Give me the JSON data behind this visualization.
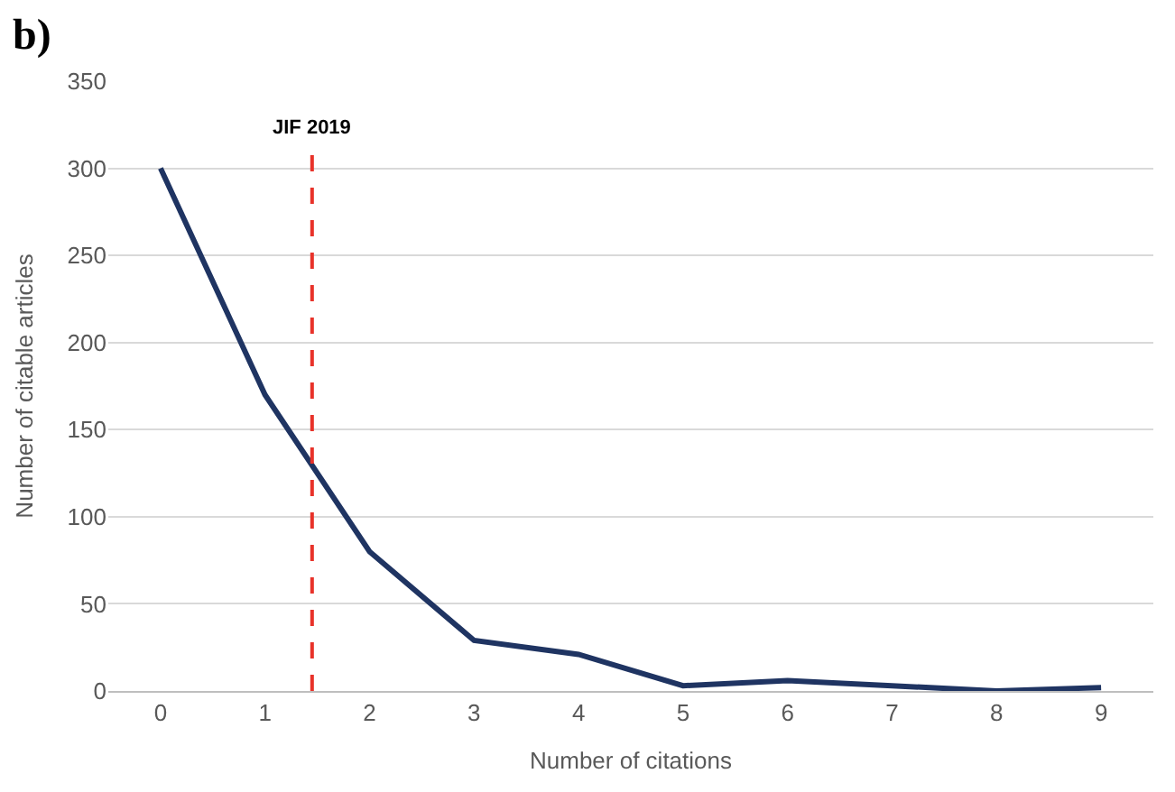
{
  "chart_data": {
    "type": "line",
    "xlabel": "Number of citations",
    "ylabel": "Number of citable articles",
    "x": [
      0,
      1,
      2,
      3,
      4,
      5,
      6,
      7,
      8,
      9
    ],
    "series": [
      {
        "color": "#1f3462",
        "values": [
          300,
          170,
          80,
          29,
          21,
          3,
          6,
          3,
          0,
          2
        ]
      }
    ],
    "xlim": [
      -0.5,
      9.5
    ],
    "xticks": [
      0,
      1,
      2,
      3,
      4,
      5,
      6,
      7,
      8,
      9
    ],
    "ylim": [
      0,
      350
    ],
    "yticks": [
      0,
      50,
      100,
      150,
      200,
      250,
      300,
      350
    ],
    "ref_lines": [
      {
        "axis": "x",
        "value": 1.45,
        "label": "JIF 2019",
        "color": "#e8322a",
        "line_style": "dashed"
      }
    ],
    "annotations": [
      "b)"
    ],
    "grid": "y",
    "marker": "none",
    "line_style": "solid"
  }
}
